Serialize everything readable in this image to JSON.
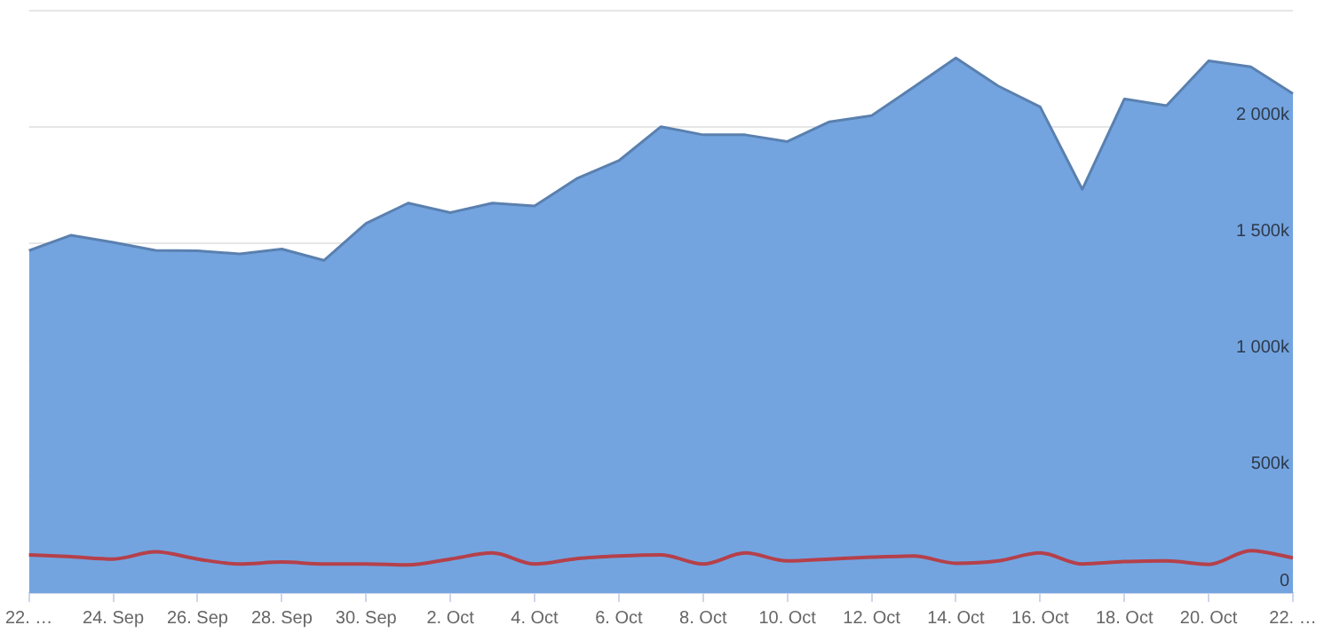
{
  "chart_data": {
    "type": "area",
    "categories": [
      "22. …",
      null,
      "24. Sep",
      null,
      "26. Sep",
      null,
      "28. Sep",
      null,
      "30. Sep",
      null,
      "2. Oct",
      null,
      "4. Oct",
      null,
      "6. Oct",
      null,
      "8. Oct",
      null,
      "10. Oct",
      null,
      "12. Oct",
      null,
      "14. Oct",
      null,
      "16. Oct",
      null,
      "18. Oct",
      null,
      "20. Oct",
      null,
      "22. …"
    ],
    "series": [
      {
        "type": "area",
        "color": "#73a4e0",
        "values": [
          1470000,
          1536000,
          1505000,
          1471000,
          1469000,
          1456000,
          1477000,
          1428000,
          1587000,
          1674000,
          1633000,
          1674000,
          1662000,
          1779000,
          1856000,
          2002000,
          1967000,
          1967000,
          1938000,
          2023000,
          2049000,
          2172000,
          2297000,
          2177000,
          2087000,
          1733000,
          2121000,
          2092000,
          2285000,
          2259000,
          2144000
        ]
      },
      {
        "type": "line",
        "color": "#b5404a",
        "values": [
          164000,
          156000,
          146000,
          177000,
          146000,
          125000,
          133000,
          125000,
          125000,
          121000,
          146000,
          172000,
          125000,
          148000,
          159000,
          164000,
          125000,
          172000,
          138000,
          146000,
          154000,
          159000,
          128000,
          138000,
          172000,
          125000,
          135000,
          138000,
          123000,
          182000,
          151000
        ]
      }
    ],
    "ylim": [
      0,
      2500000
    ],
    "yticks": [
      {
        "value": 0,
        "label": "0"
      },
      {
        "value": 500000,
        "label": "500k"
      },
      {
        "value": 1000000,
        "label": "1 000k"
      },
      {
        "value": 1500000,
        "label": "1 500k"
      },
      {
        "value": 2000000,
        "label": "2 000k"
      },
      {
        "value": 2500000,
        "label": null
      }
    ],
    "grid": "y",
    "legend": false,
    "marker": "none",
    "line_style": "solid"
  }
}
